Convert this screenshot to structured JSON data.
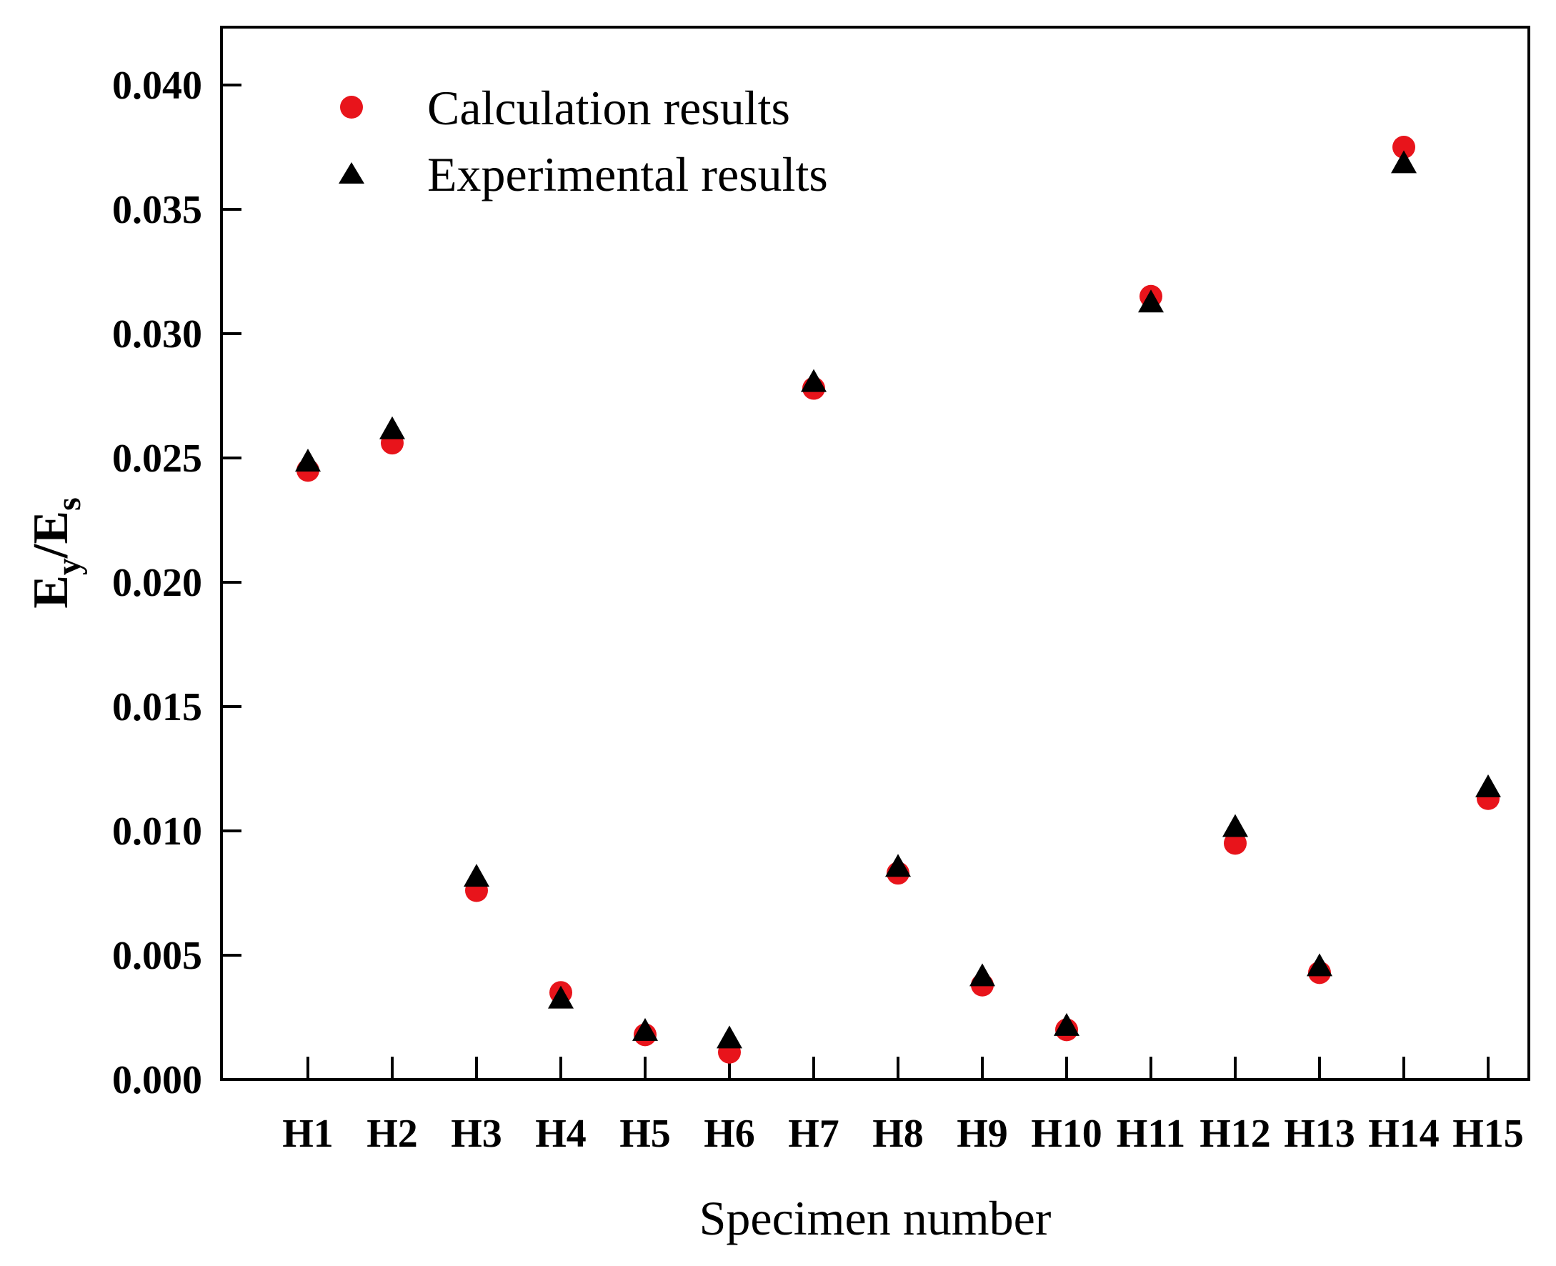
{
  "chart_data": {
    "type": "scatter",
    "title": "",
    "xlabel": "Specimen number",
    "ylabel": {
      "main": "E",
      "sub1": "y",
      "slash": "/E",
      "sub2": "s"
    },
    "categories": [
      "H1",
      "H2",
      "H3",
      "H4",
      "H5",
      "H6",
      "H7",
      "H8",
      "H9",
      "H10",
      "H11",
      "H12",
      "H13",
      "H14",
      "H15"
    ],
    "ylim": [
      0,
      0.0425
    ],
    "yticks": [
      0.0,
      0.005,
      0.01,
      0.015,
      0.02,
      0.025,
      0.03,
      0.035,
      0.04
    ],
    "ytick_labels": [
      "0.000",
      "0.005",
      "0.010",
      "0.015",
      "0.020",
      "0.025",
      "0.030",
      "0.035",
      "0.040"
    ],
    "grid": false,
    "legend_position": "top-left",
    "series": [
      {
        "name": "Calculation results",
        "marker": "circle",
        "color": "#e8141b",
        "values": [
          0.0245,
          0.0256,
          0.0076,
          0.0035,
          0.0018,
          0.0011,
          0.0278,
          0.0083,
          0.0038,
          0.002,
          0.0315,
          0.0095,
          0.0043,
          0.0375,
          0.0113
        ]
      },
      {
        "name": "Experimental results",
        "marker": "triangle",
        "color": "#000000",
        "values": [
          0.0248,
          0.0261,
          0.0081,
          0.0032,
          0.0019,
          0.0016,
          0.028,
          0.0085,
          0.0041,
          0.0021,
          0.0312,
          0.0101,
          0.0045,
          0.0368,
          0.0117
        ]
      }
    ]
  }
}
